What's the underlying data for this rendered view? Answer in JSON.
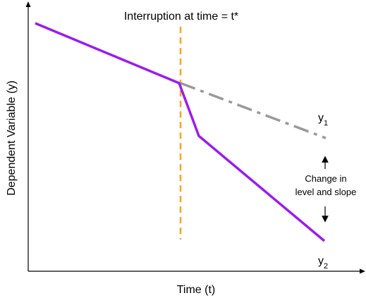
{
  "diagram": {
    "title": "Interruption at time = t*",
    "x_axis_label": "Time (t)",
    "y_axis_label": "Dependent Variable (y)",
    "y1_label": {
      "base": "y",
      "sub": "1"
    },
    "y2_label": {
      "base": "y",
      "sub": "2"
    },
    "annotation": {
      "line1": "Change in",
      "line2": "level and slope"
    }
  },
  "colors": {
    "axes": "#000000",
    "actual_trend": "#9b1bf0",
    "counterfactual_trend": "#999999",
    "interruption_line": "#f5a623",
    "text": "#000000"
  }
}
